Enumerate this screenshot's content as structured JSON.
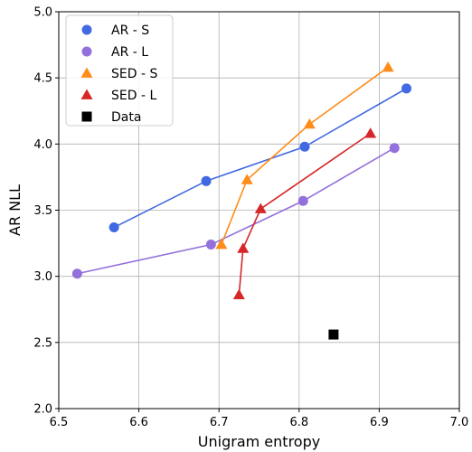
{
  "chart_data": {
    "type": "scatter",
    "title": "",
    "xlabel": "Unigram entropy",
    "ylabel": "AR NLL",
    "xlim": [
      6.5,
      7.0
    ],
    "ylim": [
      2.0,
      5.0
    ],
    "xticks": [
      "6.5",
      "6.6",
      "6.7",
      "6.8",
      "6.9",
      "7.0"
    ],
    "yticks": [
      "2.0",
      "2.5",
      "3.0",
      "3.5",
      "4.0",
      "4.5",
      "5.0"
    ],
    "grid": true,
    "legend_position": "top-left",
    "series": [
      {
        "name": "AR - S",
        "marker": "circle",
        "color": "#4169e1",
        "line": true,
        "points": [
          [
            6.569,
            3.37
          ],
          [
            6.684,
            3.72
          ],
          [
            6.807,
            3.98
          ],
          [
            6.934,
            4.42
          ]
        ]
      },
      {
        "name": "AR - L",
        "marker": "circle",
        "color": "#9370db",
        "line": true,
        "points": [
          [
            6.523,
            3.02
          ],
          [
            6.69,
            3.24
          ],
          [
            6.805,
            3.57
          ],
          [
            6.919,
            3.97
          ]
        ]
      },
      {
        "name": "SED - S",
        "marker": "triangle",
        "color": "#ff8c1a",
        "line": true,
        "points": [
          [
            6.703,
            3.24
          ],
          [
            6.735,
            3.73
          ],
          [
            6.813,
            4.15
          ],
          [
            6.911,
            4.58
          ]
        ]
      },
      {
        "name": "SED - L",
        "marker": "triangle",
        "color": "#d62728",
        "line": true,
        "points": [
          [
            6.725,
            2.86
          ],
          [
            6.73,
            3.21
          ],
          [
            6.752,
            3.51
          ],
          [
            6.889,
            4.08
          ]
        ]
      },
      {
        "name": "Data",
        "marker": "square",
        "color": "#000000",
        "line": false,
        "points": [
          [
            6.843,
            2.56
          ]
        ]
      }
    ]
  }
}
